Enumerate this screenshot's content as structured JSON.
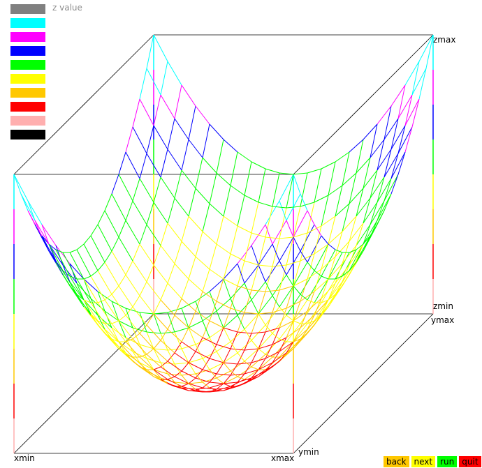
{
  "legend": {
    "title": "z value",
    "colors": [
      "#808080",
      "#00ffff",
      "#ff00ff",
      "#0000ff",
      "#00ff00",
      "#ffff00",
      "#ffc800",
      "#ff0000",
      "#ffafaf",
      "#000000"
    ]
  },
  "axes": {
    "xmin": "xmin",
    "xmax": "xmax",
    "ymin": "ymin",
    "ymax": "ymax",
    "zmin": "zmin",
    "zmax": "zmax"
  },
  "buttons": [
    {
      "label": "back",
      "color": "#ffc800"
    },
    {
      "label": "next",
      "color": "#ffff00"
    },
    {
      "label": "run",
      "color": "#00ff00"
    },
    {
      "label": "quit",
      "color": "#ff0000"
    }
  ],
  "chart_data": {
    "type": "surface",
    "title": "",
    "function": "z = x^2 + y^2",
    "x_range": [
      -1,
      1
    ],
    "y_range": [
      -1,
      1
    ],
    "z_range": [
      0,
      2
    ],
    "grid_n": 20,
    "color_by": "z value",
    "box": true
  }
}
